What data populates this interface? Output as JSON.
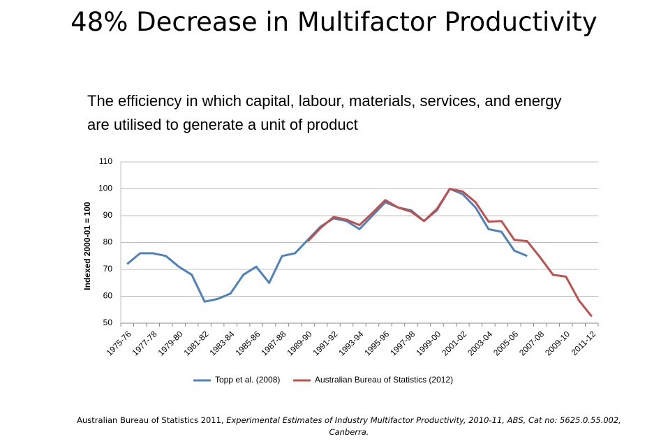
{
  "title": "48% Decrease in Multifactor Productivity",
  "subtitle_lines": [
    "The efficiency in which capital, labour, materials, services, and energy",
    "are utilised to generate a unit of product"
  ],
  "source": {
    "plain": "Australian Bureau of Statistics 2011, ",
    "italic": "Experimental Estimates of Industry Multifactor Productivity, 2010-11, ABS, Cat no: 5625.0.55.002, Canberra."
  },
  "chart_data": {
    "type": "line",
    "y_label": "Indexed 2000-01 = 100",
    "categories": [
      "1975-76",
      null,
      "1977-78",
      null,
      "1979-80",
      null,
      "1981-82",
      null,
      "1983-84",
      null,
      "1985-86",
      null,
      "1987-88",
      null,
      "1989-90",
      null,
      "1991-92",
      null,
      "1993-94",
      null,
      "1995-96",
      null,
      "1997-98",
      null,
      "1999-00",
      null,
      "2001-02",
      null,
      "2003-04",
      null,
      "2005-06",
      null,
      "2007-08",
      null,
      "2009-10",
      null,
      "2011-12"
    ],
    "series": [
      {
        "name": "Topp et al. (2008)",
        "color": "#4f81bd",
        "values": [
          72,
          76,
          76,
          75,
          71,
          68,
          58,
          59,
          61,
          68,
          71,
          65,
          75,
          76,
          81,
          86,
          89,
          88,
          85,
          90,
          95,
          93,
          92,
          88,
          92,
          100,
          98,
          93,
          85,
          84,
          77,
          75,
          null,
          null,
          null,
          null,
          null
        ]
      },
      {
        "name": "Australian Bureau of Statistics (2012)",
        "color": "#c0504d",
        "values": [
          null,
          null,
          null,
          null,
          null,
          null,
          null,
          null,
          null,
          null,
          null,
          null,
          null,
          null,
          80.5,
          85.5,
          89.5,
          88.5,
          86.5,
          91,
          95.8,
          93,
          91.5,
          88,
          92.5,
          100,
          99,
          95,
          87.8,
          88,
          81,
          80.5,
          74.5,
          68,
          67.3,
          58.5,
          52.5
        ]
      }
    ],
    "ylim": [
      50,
      110
    ],
    "yticks": [
      50,
      60,
      70,
      80,
      90,
      100,
      110
    ],
    "grid": true,
    "legend": "bottom"
  }
}
